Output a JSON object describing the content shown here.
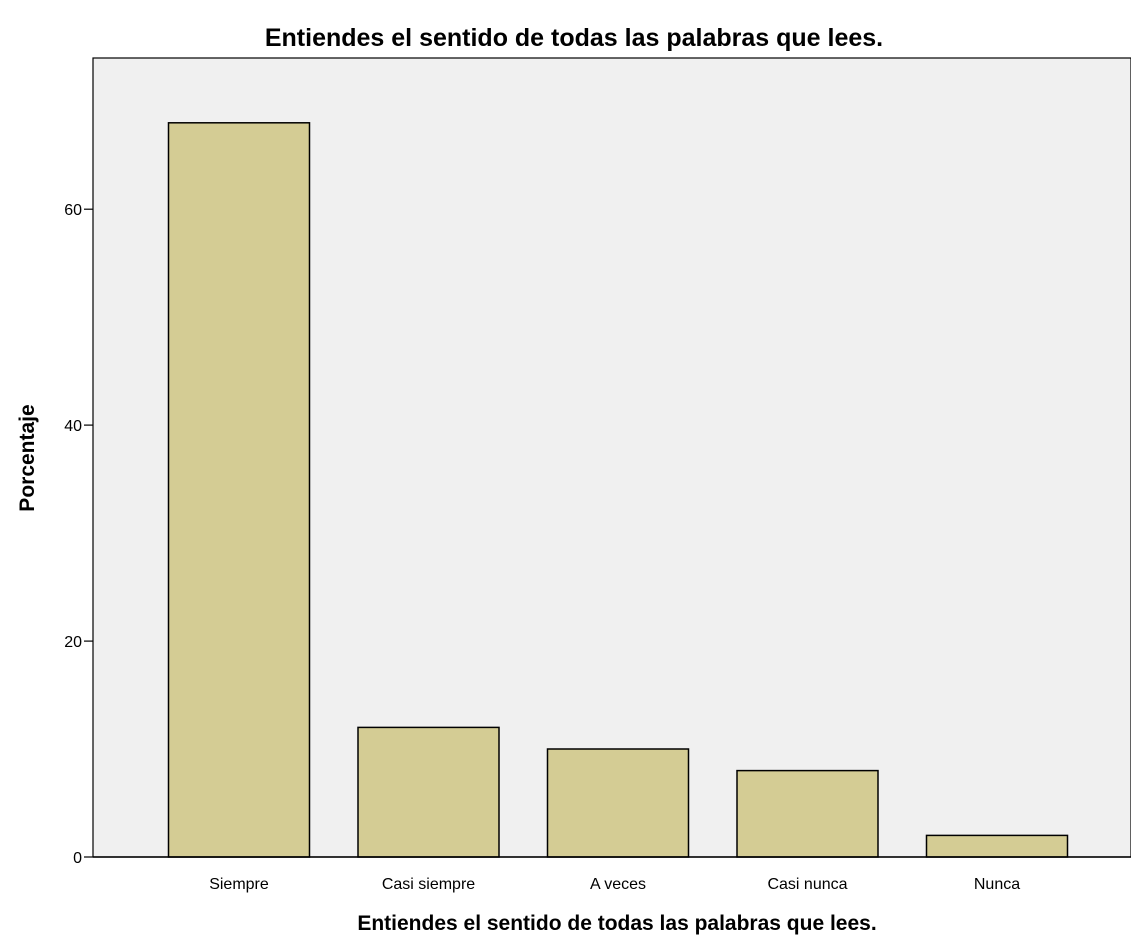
{
  "chart_data": {
    "type": "bar",
    "title": "Entiendes el sentido de todas las palabras que lees.",
    "xlabel": "Entiendes el sentido de todas las palabras que lees.",
    "ylabel": "Porcentaje",
    "categories": [
      "Siempre",
      "Casi siempre",
      "A veces",
      "Casi nunca",
      "Nunca"
    ],
    "values": [
      68,
      12,
      10,
      8,
      2
    ],
    "ylim": [
      0,
      74
    ],
    "yticks": [
      "0",
      "20",
      "40",
      "60"
    ],
    "grid": false,
    "legend": "none",
    "colors": {
      "bar_fill": "#d4cc94",
      "bar_stroke": "#000000",
      "plot_background": "#f0f0f0"
    }
  }
}
